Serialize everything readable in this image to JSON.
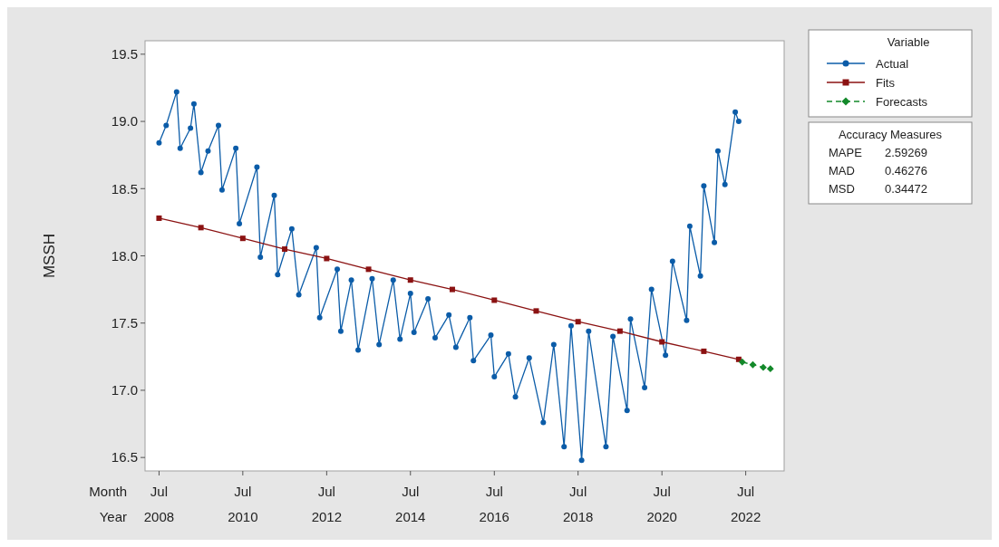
{
  "chart_data": {
    "type": "line",
    "ylabel": "MSSH",
    "legend_title": "Variable",
    "legend": "right",
    "grid": false,
    "xlim": [
      "2008-03",
      "2023-06"
    ],
    "ylim": [
      16.4,
      19.6
    ],
    "xticks": [
      {
        "value": "2008-07",
        "label": "Jul 2008"
      },
      {
        "value": "2010-07",
        "label": "Jul 2010"
      },
      {
        "value": "2012-07",
        "label": "Jul 2012"
      },
      {
        "value": "2014-07",
        "label": "Jul 2014"
      },
      {
        "value": "2016-07",
        "label": "Jul 2016"
      },
      {
        "value": "2018-07",
        "label": "Jul 2018"
      },
      {
        "value": "2020-07",
        "label": "Jul 2020"
      },
      {
        "value": "2022-07",
        "label": "Jul 2022"
      }
    ],
    "yticks": [
      {
        "value": 16.5,
        "label": "16.5"
      },
      {
        "value": 17,
        "label": "17.0"
      },
      {
        "value": 17.5,
        "label": "17.5"
      },
      {
        "value": 18,
        "label": "18.0"
      },
      {
        "value": 18.5,
        "label": "18.5"
      },
      {
        "value": 19,
        "label": "19.0"
      },
      {
        "value": 19.5,
        "label": "19.5"
      }
    ],
    "annotations": [
      "Month",
      "Year",
      "Accuracy Measures",
      "MAPE 2.59269",
      "MAD 0.46276",
      "MSD 0.34472"
    ],
    "series": [
      {
        "name": "Actual",
        "color": "#0b5ca8",
        "marker": "circle",
        "line_style": "solid",
        "x": [
          "2008-07",
          "2008-09",
          "2008-12",
          "2009-01",
          "2009-04",
          "2009-05",
          "2009-07",
          "2009-09",
          "2009-12",
          "2010-01",
          "2010-05",
          "2010-06",
          "2010-11",
          "2010-12",
          "2011-04",
          "2011-05",
          "2011-09",
          "2011-11",
          "2012-04",
          "2012-05",
          "2012-10",
          "2012-11",
          "2013-02",
          "2013-04",
          "2013-08",
          "2013-10",
          "2014-02",
          "2014-04",
          "2014-07",
          "2014-08",
          "2014-12",
          "2015-02",
          "2015-06",
          "2015-08",
          "2015-12",
          "2016-01",
          "2016-06",
          "2016-07",
          "2016-11",
          "2017-01",
          "2017-05",
          "2017-09",
          "2017-12",
          "2018-03",
          "2018-05",
          "2018-08",
          "2018-10",
          "2019-03",
          "2019-05",
          "2019-09",
          "2019-10",
          "2020-02",
          "2020-04",
          "2020-08",
          "2020-10",
          "2021-02",
          "2021-03",
          "2021-06",
          "2021-07",
          "2021-10",
          "2021-11",
          "2022-01",
          "2022-04",
          "2022-05"
        ],
        "values": [
          18.84,
          18.97,
          19.22,
          18.8,
          18.95,
          19.13,
          18.62,
          18.78,
          18.97,
          18.49,
          18.8,
          18.24,
          18.66,
          17.99,
          18.45,
          17.86,
          18.2,
          17.71,
          18.06,
          17.54,
          17.9,
          17.44,
          17.82,
          17.3,
          17.83,
          17.34,
          17.82,
          17.38,
          17.72,
          17.43,
          17.68,
          17.39,
          17.56,
          17.32,
          17.54,
          17.22,
          17.41,
          17.1,
          17.27,
          16.95,
          17.24,
          16.76,
          17.34,
          16.58,
          17.48,
          16.48,
          17.44,
          16.58,
          17.4,
          16.85,
          17.53,
          17.02,
          17.75,
          17.26,
          17.96,
          17.52,
          18.22,
          17.85,
          18.52,
          18.1,
          18.78,
          18.53,
          19.07,
          19.0
        ]
      },
      {
        "name": "Fits",
        "color": "#8b1212",
        "marker": "square",
        "line_style": "solid",
        "x": [
          "2008-07",
          "2009-07",
          "2010-07",
          "2011-07",
          "2012-07",
          "2013-07",
          "2014-07",
          "2015-07",
          "2016-07",
          "2017-07",
          "2018-07",
          "2019-07",
          "2020-07",
          "2021-07",
          "2022-05"
        ],
        "values": [
          18.28,
          18.21,
          18.13,
          18.05,
          17.98,
          17.9,
          17.82,
          17.75,
          17.67,
          17.59,
          17.51,
          17.44,
          17.36,
          17.29,
          17.23
        ]
      },
      {
        "name": "Forecasts",
        "color": "#13892a",
        "marker": "diamond",
        "line_style": "dashed",
        "x": [
          "2022-06",
          "2022-09",
          "2022-12",
          "2023-02"
        ],
        "values": [
          17.21,
          17.19,
          17.17,
          17.16
        ]
      }
    ]
  }
}
